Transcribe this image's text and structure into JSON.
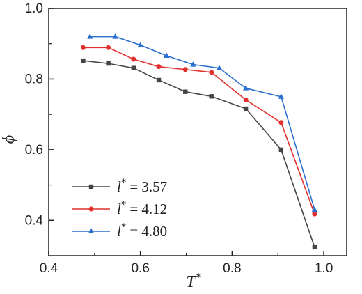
{
  "chart_data": {
    "type": "line",
    "xlabel": "T",
    "xlabel_sup": "*",
    "ylabel": "ϕ",
    "xlim": [
      0.4,
      1.05
    ],
    "ylim": [
      0.3,
      1.0
    ],
    "x_ticks": [
      0.4,
      0.6,
      0.8,
      1.0
    ],
    "x_tick_labels": [
      "0.4",
      "0.6",
      "0.8",
      "1.0"
    ],
    "y_ticks": [
      0.4,
      0.6,
      0.8,
      1.0
    ],
    "y_tick_labels": [
      "0.4",
      "0.6",
      "0.8",
      "1.0"
    ],
    "grid": false,
    "legend_position": "lower-left",
    "series": [
      {
        "name_var": "l",
        "name_sup": "*",
        "name_value": "= 3.57",
        "color": "#444444",
        "marker": "square",
        "x": [
          0.475,
          0.53,
          0.585,
          0.64,
          0.698,
          0.755,
          0.83,
          0.907,
          0.98
        ],
        "y": [
          0.852,
          0.844,
          0.831,
          0.797,
          0.764,
          0.751,
          0.716,
          0.6,
          0.324
        ]
      },
      {
        "name_var": "l",
        "name_sup": "*",
        "name_value": "= 4.12",
        "color": "#e0302c",
        "marker": "circle",
        "x": [
          0.475,
          0.53,
          0.585,
          0.64,
          0.698,
          0.755,
          0.83,
          0.907,
          0.98
        ],
        "y": [
          0.889,
          0.889,
          0.856,
          0.835,
          0.827,
          0.819,
          0.741,
          0.677,
          0.418
        ]
      },
      {
        "name_var": "l",
        "name_sup": "*",
        "name_value": "= 4.80",
        "color": "#2a6fd0",
        "marker": "triangle",
        "x": [
          0.49,
          0.545,
          0.6,
          0.657,
          0.715,
          0.772,
          0.83,
          0.907,
          0.98
        ],
        "y": [
          0.92,
          0.92,
          0.896,
          0.866,
          0.841,
          0.831,
          0.774,
          0.75,
          0.43
        ]
      }
    ]
  }
}
